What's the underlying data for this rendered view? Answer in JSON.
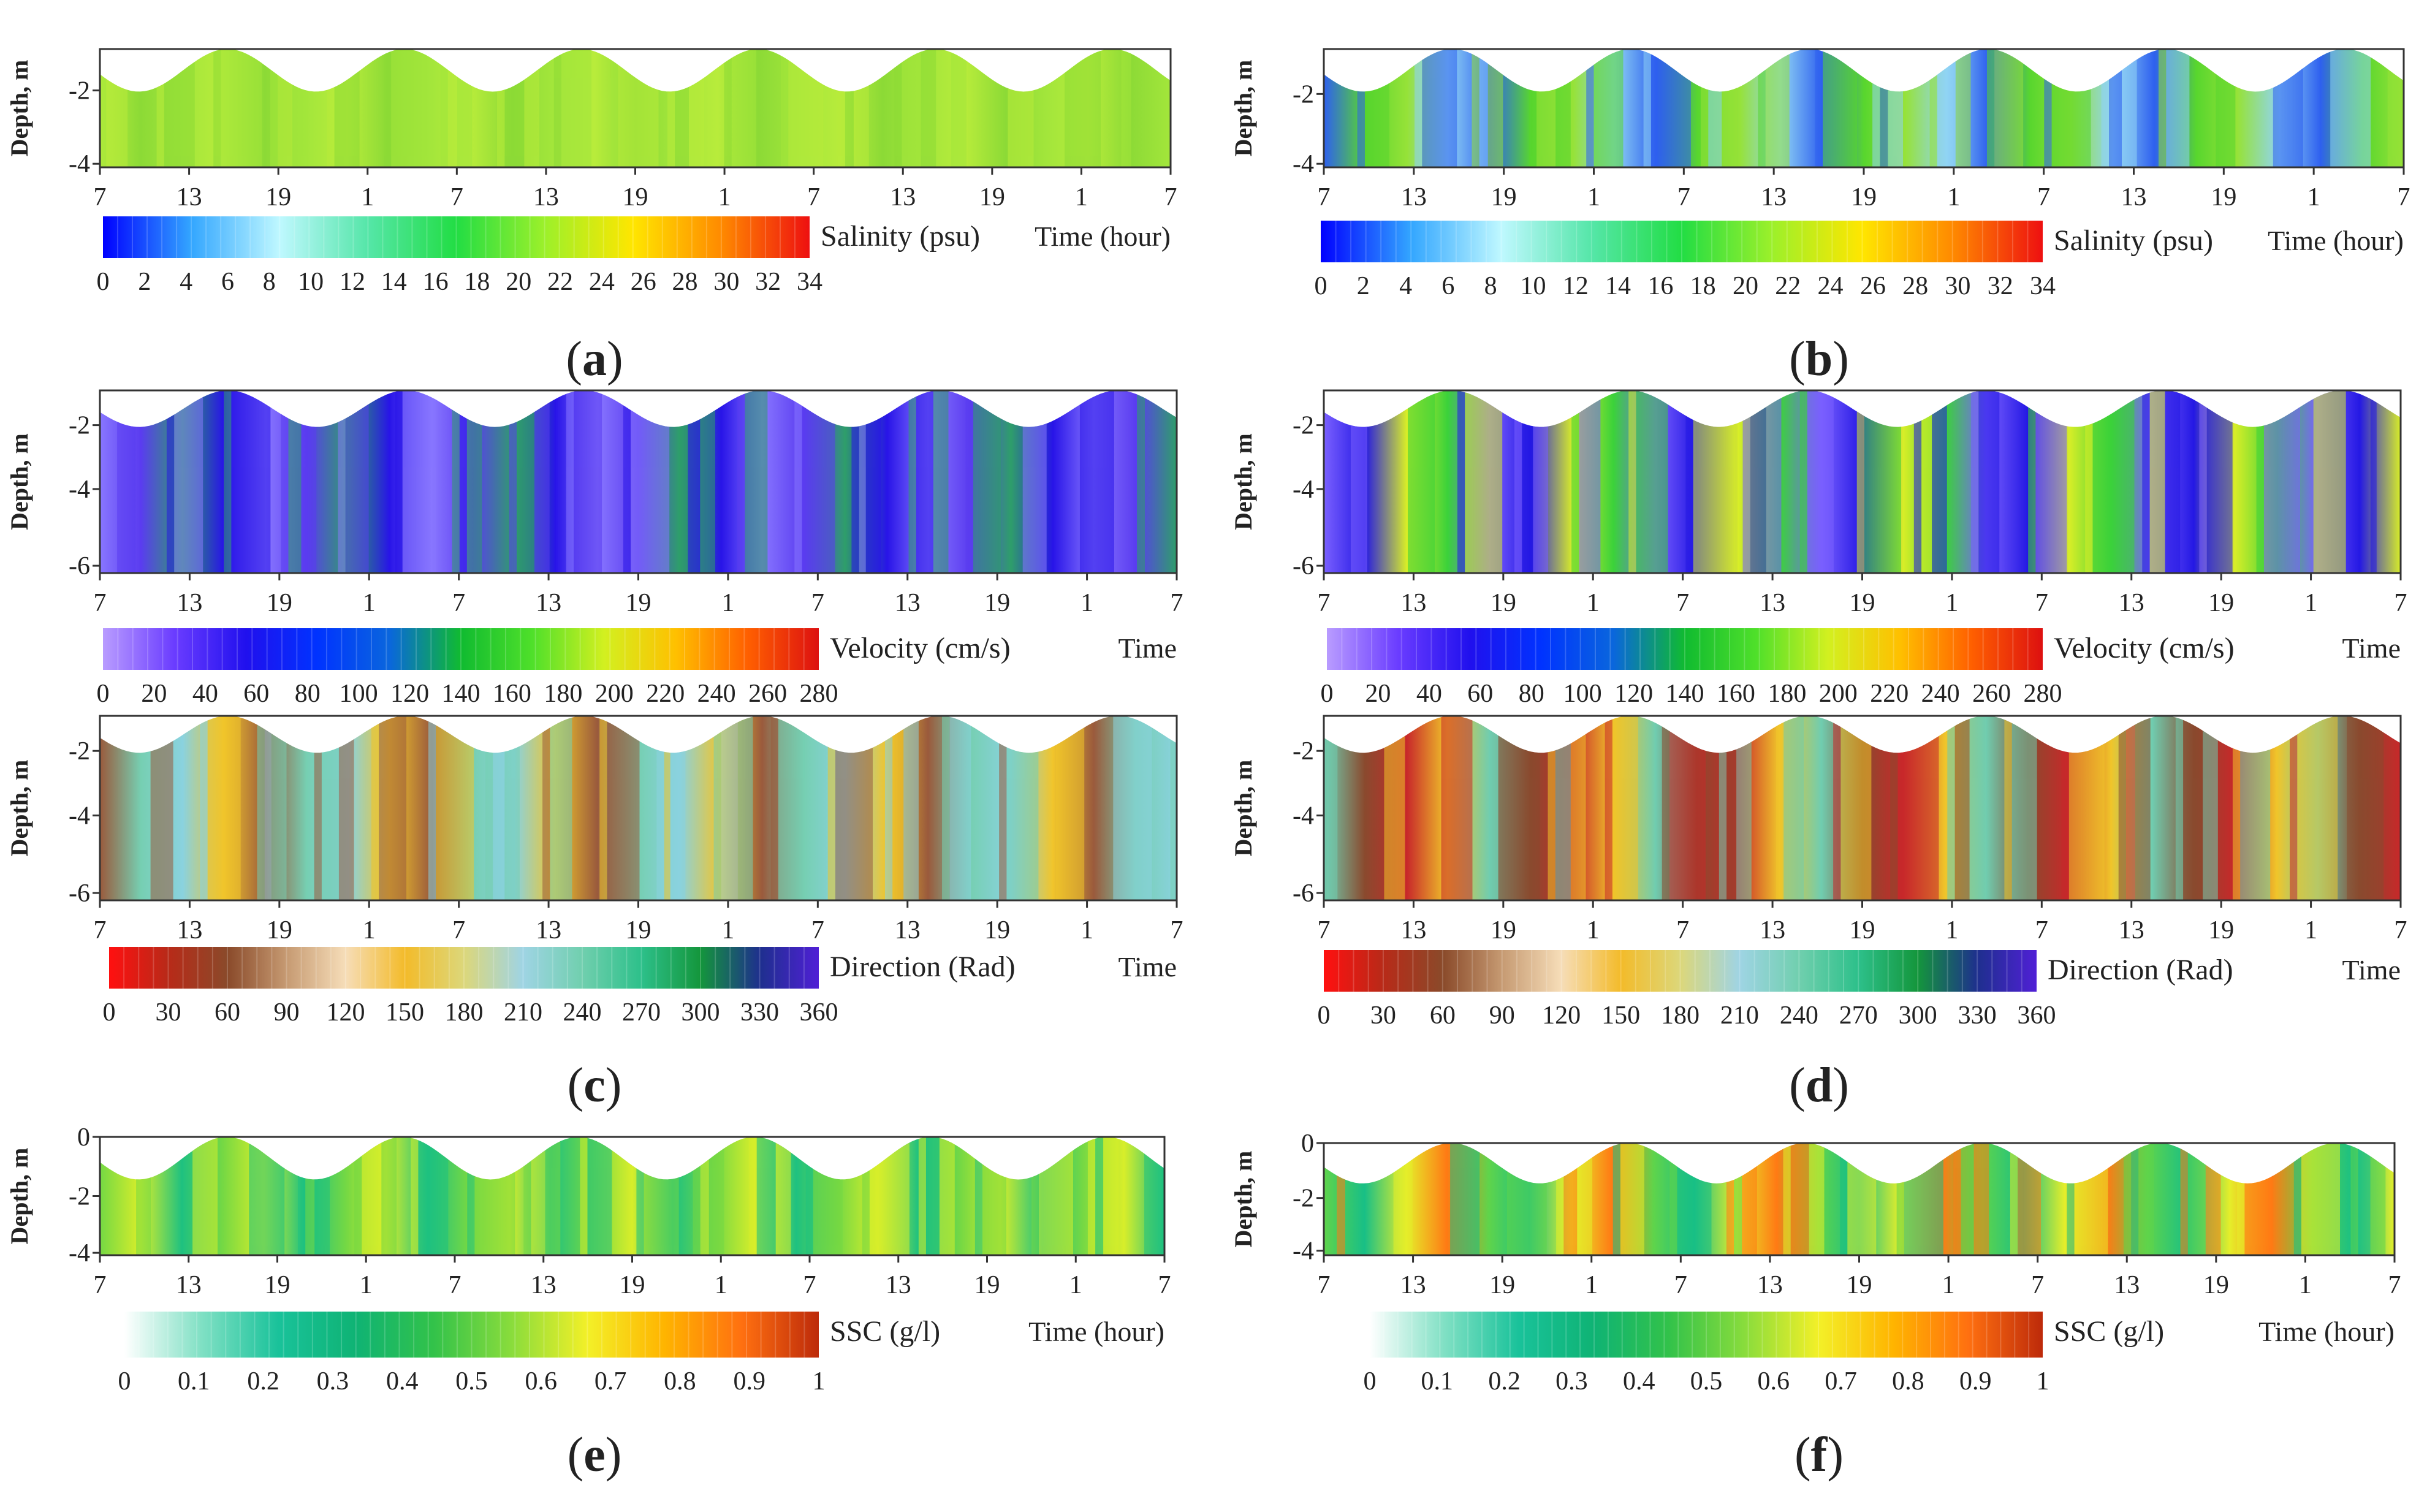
{
  "figure": {
    "x_tick_labels": [
      "7",
      "13",
      "19",
      "1",
      "7",
      "13",
      "19",
      "1",
      "7",
      "13",
      "19",
      "1",
      "7"
    ],
    "shared_time_label": "Time",
    "scales": {
      "salinity": {
        "label": "Salinity (psu)",
        "ticks": [
          "0",
          "2",
          "4",
          "6",
          "8",
          "10",
          "12",
          "14",
          "16",
          "18",
          "20",
          "22",
          "24",
          "26",
          "28",
          "30",
          "32",
          "34"
        ],
        "colors": [
          "#0000ff",
          "#33a6ff",
          "#bff8ff",
          "#55e6a8",
          "#22dd44",
          "#9cf02a",
          "#ffe600",
          "#ff8a00",
          "#ee1010"
        ]
      },
      "velocity": {
        "label": "Velocity (cm/s)",
        "ticks": [
          "0",
          "20",
          "40",
          "60",
          "80",
          "100",
          "120",
          "140",
          "160",
          "180",
          "200",
          "220",
          "240",
          "260",
          "280"
        ],
        "colors": [
          "#b99cff",
          "#6a3cff",
          "#2010ee",
          "#0033ff",
          "#0a66dd",
          "#10bb30",
          "#4fe02a",
          "#d2f020",
          "#ffc000",
          "#ff6000",
          "#dd1010"
        ]
      },
      "direction": {
        "label": "Direction (Rad)",
        "ticks": [
          "0",
          "30",
          "60",
          "90",
          "120",
          "150",
          "180",
          "210",
          "240",
          "270",
          "300",
          "330",
          "360"
        ],
        "colors": [
          "#ff1010",
          "#b82a18",
          "#8a4a2a",
          "#c69a72",
          "#f6ddb8",
          "#f3bb2a",
          "#dcd77a",
          "#9fd4e4",
          "#70cfae",
          "#2dc08a",
          "#14963c",
          "#1e2f8e",
          "#5020d6"
        ]
      },
      "ssc": {
        "label": "SSC (g/l)",
        "ticks": [
          "0",
          "0.1",
          "0.2",
          "0.3",
          "0.4",
          "0.5",
          "0.6",
          "0.7",
          "0.8",
          "0.9",
          "1"
        ],
        "colors": [
          "#ffffff",
          "#80e0c4",
          "#19c29a",
          "#0fb374",
          "#32c24a",
          "#88dc3c",
          "#f3f028",
          "#ffb400",
          "#ff7010",
          "#bd2a0a"
        ]
      }
    },
    "panels": [
      {
        "id": "a",
        "caption_letter": "a",
        "scale": "salinity",
        "ylabel": "Depth, m",
        "y_ticks": [
          "-2",
          "-4"
        ],
        "time_label": "Time (hour)",
        "colors": [
          "#a3e63b",
          "#b8ec3b",
          "#8cda36"
        ]
      },
      {
        "id": "b",
        "caption_letter": "b",
        "scale": "salinity",
        "ylabel": "Depth, m",
        "y_ticks": [
          "-2",
          "-4"
        ],
        "time_label": "Time (hour)",
        "colors": [
          "#58d62e",
          "#2e60ef",
          "#90d4f4",
          "#96e238"
        ]
      },
      {
        "id": "c_vel",
        "caption_letter": "c",
        "scale": "velocity",
        "ylabel": "Depth, m",
        "y_ticks": [
          "-2",
          "-4",
          "-6"
        ],
        "time_label": "Time",
        "colors": [
          "#5a3cf0",
          "#8876ff",
          "#2814e8",
          "#2e9e6a"
        ]
      },
      {
        "id": "c_dir",
        "scale": "direction",
        "ylabel": "Depth, m",
        "y_ticks": [
          "-2",
          "-4",
          "-6"
        ],
        "time_label": "Time",
        "colors": [
          "#76cfb2",
          "#9a5a3c",
          "#f1c52b",
          "#8ad2df"
        ]
      },
      {
        "id": "d_vel",
        "caption_letter": "d",
        "scale": "velocity",
        "ylabel": "Depth, m",
        "y_ticks": [
          "-2",
          "-4",
          "-6"
        ],
        "time_label": "Time",
        "colors": [
          "#2418e4",
          "#7a60ff",
          "#3bd23a",
          "#d8ee27"
        ]
      },
      {
        "id": "d_dir",
        "scale": "direction",
        "ylabel": "Depth, m",
        "y_ticks": [
          "-2",
          "-4",
          "-6"
        ],
        "time_label": "Time",
        "colors": [
          "#8a4a2e",
          "#70cdb0",
          "#f0c52a",
          "#c8282a"
        ]
      },
      {
        "id": "e",
        "caption_letter": "e",
        "scale": "ssc",
        "ylabel": "Depth, m",
        "y_ticks": [
          "0",
          "-2",
          "-4"
        ],
        "time_label": "Time (hour)",
        "colors": [
          "#1ec180",
          "#74d844",
          "#d8ee2a"
        ]
      },
      {
        "id": "f",
        "caption_letter": "f",
        "scale": "ssc",
        "ylabel": "Depth, m",
        "y_ticks": [
          "0",
          "-2",
          "-4"
        ],
        "time_label": "Time (hour)",
        "colors": [
          "#18bf86",
          "#5fd44b",
          "#ff7a14",
          "#e5ee2a"
        ]
      }
    ]
  },
  "chart_data": [
    {
      "type": "heatmap",
      "panel": "a",
      "variable": "Salinity (psu)",
      "range": [
        0,
        34
      ],
      "x": "Time (hour)",
      "x_ticks": [
        "7",
        "13",
        "19",
        "1",
        "7",
        "13",
        "19",
        "1",
        "7",
        "13",
        "19",
        "1",
        "7"
      ],
      "y": "Depth, m",
      "y_ticks": [
        -2,
        -4
      ],
      "dominant_value_range": [
        16,
        20
      ]
    },
    {
      "type": "heatmap",
      "panel": "b",
      "variable": "Salinity (psu)",
      "range": [
        0,
        34
      ],
      "x": "Time (hour)",
      "x_ticks": [
        "7",
        "13",
        "19",
        "1",
        "7",
        "13",
        "19",
        "1",
        "7",
        "13",
        "19",
        "1",
        "7"
      ],
      "y": "Depth, m",
      "y_ticks": [
        -2,
        -4
      ],
      "dominant_value_range": [
        0,
        18
      ]
    },
    {
      "type": "heatmap",
      "panel": "c",
      "variable": "Velocity (cm/s)",
      "range": [
        0,
        280
      ],
      "x": "Time",
      "y": "Depth, m",
      "y_ticks": [
        -2,
        -4,
        -6
      ],
      "dominant_value_range": [
        0,
        100
      ]
    },
    {
      "type": "heatmap",
      "panel": "c",
      "variable": "Direction (Rad)",
      "range": [
        0,
        360
      ],
      "x": "Time",
      "y": "Depth, m",
      "y_ticks": [
        -2,
        -4,
        -6
      ]
    },
    {
      "type": "heatmap",
      "panel": "d",
      "variable": "Velocity (cm/s)",
      "range": [
        0,
        280
      ],
      "x": "Time",
      "y": "Depth, m",
      "y_ticks": [
        -2,
        -4,
        -6
      ],
      "dominant_value_range": [
        0,
        160
      ]
    },
    {
      "type": "heatmap",
      "panel": "d",
      "variable": "Direction (Rad)",
      "range": [
        0,
        360
      ],
      "x": "Time",
      "y": "Depth, m",
      "y_ticks": [
        -2,
        -4,
        -6
      ]
    },
    {
      "type": "heatmap",
      "panel": "e",
      "variable": "SSC (g/l)",
      "range": [
        0,
        1
      ],
      "x": "Time (hour)",
      "y": "Depth, m",
      "y_ticks": [
        0,
        -2,
        -4
      ],
      "dominant_value_range": [
        0.3,
        0.6
      ]
    },
    {
      "type": "heatmap",
      "panel": "f",
      "variable": "SSC (g/l)",
      "range": [
        0,
        1
      ],
      "x": "Time (hour)",
      "y": "Depth, m",
      "y_ticks": [
        0,
        -2,
        -4
      ],
      "dominant_value_range": [
        0.3,
        0.9
      ]
    }
  ]
}
